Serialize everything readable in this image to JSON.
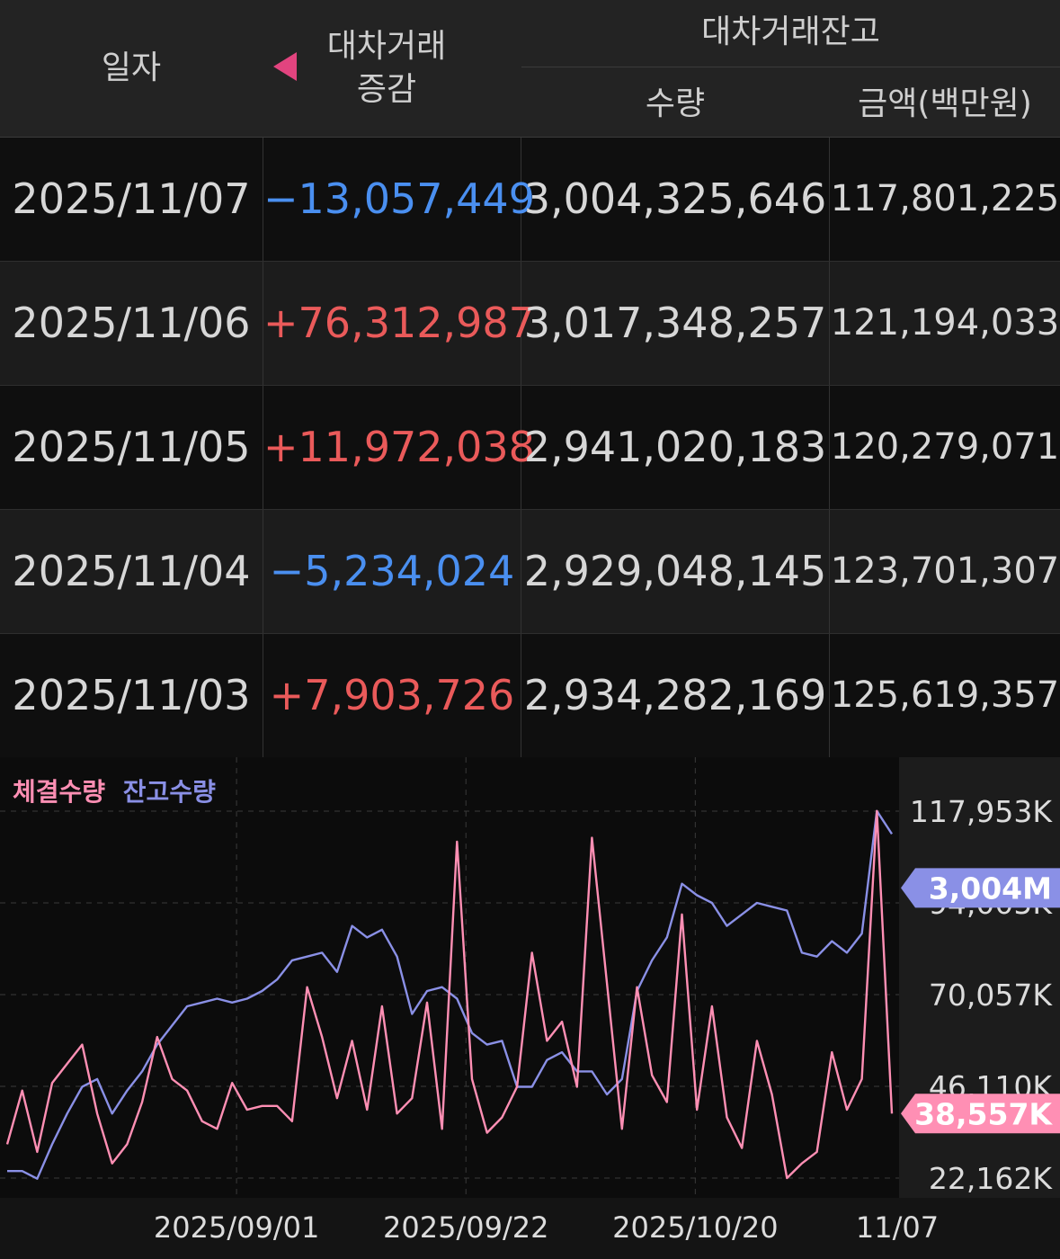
{
  "header": {
    "date_label": "일자",
    "change_label_line1": "대차거래",
    "change_label_line2": "증감",
    "balance_label": "대차거래잔고",
    "qty_label": "수량",
    "amount_label": "금액(백만원)"
  },
  "rows": [
    {
      "date": "2025/11/07",
      "change": "−13,057,449",
      "dir": "neg",
      "qty": "3,004,325,646",
      "amount": "117,801,225"
    },
    {
      "date": "2025/11/06",
      "change": "+76,312,987",
      "dir": "pos",
      "qty": "3,017,348,257",
      "amount": "121,194,033"
    },
    {
      "date": "2025/11/05",
      "change": "+11,972,038",
      "dir": "pos",
      "qty": "2,941,020,183",
      "amount": "120,279,071"
    },
    {
      "date": "2025/11/04",
      "change": "−5,234,024",
      "dir": "neg",
      "qty": "2,929,048,145",
      "amount": "123,701,307"
    },
    {
      "date": "2025/11/03",
      "change": "+7,903,726",
      "dir": "pos",
      "qty": "2,934,282,169",
      "amount": "125,619,357"
    }
  ],
  "colors": {
    "exec_series": "#ff8fb4",
    "balance_series": "#8a90e6",
    "neg": "#4a8ff0",
    "pos": "#ea5a5a"
  },
  "chart_data": {
    "type": "line",
    "legend": [
      "체결수량",
      "잔고수량"
    ],
    "y_ticks": [
      "117,953K",
      "94,005K",
      "70,057K",
      "46,110K",
      "22,162K"
    ],
    "y_tick_values": [
      117953,
      94005,
      70057,
      46110,
      22162
    ],
    "ylim": [
      22162,
      117953
    ],
    "x_tick_labels": [
      "2025/09/01",
      "2025/09/22",
      "2025/10/20",
      "11/07"
    ],
    "x_tick_index": [
      14,
      28,
      42,
      54
    ],
    "last_balance_label": "3,004M",
    "last_exec_label": "38,557K",
    "series": [
      {
        "name": "체결수량",
        "values": [
          31000,
          45000,
          29000,
          47000,
          52000,
          57000,
          39000,
          26000,
          31000,
          42000,
          59000,
          48000,
          45000,
          37000,
          35000,
          47000,
          40000,
          41000,
          41000,
          37000,
          72000,
          59000,
          43000,
          58000,
          40000,
          67000,
          39000,
          43000,
          68000,
          35000,
          110000,
          48000,
          34000,
          38000,
          46000,
          81000,
          58000,
          63000,
          46000,
          111000,
          73000,
          35000,
          72000,
          49000,
          42000,
          91000,
          40000,
          67000,
          38000,
          30000,
          58000,
          44000,
          22162,
          26000,
          29000,
          55000,
          40000,
          48000,
          118000,
          39000
        ]
      },
      {
        "name": "잔고수량",
        "values": [
          24000,
          24000,
          22000,
          31000,
          39000,
          46000,
          48000,
          39000,
          45000,
          50000,
          57000,
          62000,
          67000,
          68000,
          69000,
          68000,
          69000,
          71000,
          74000,
          79000,
          80000,
          81000,
          76000,
          88000,
          85000,
          87000,
          80000,
          65000,
          71000,
          72000,
          69000,
          60000,
          57000,
          58000,
          46000,
          46000,
          53000,
          55000,
          50000,
          50000,
          44000,
          48000,
          71000,
          79000,
          85000,
          99000,
          96000,
          94000,
          88000,
          91000,
          94000,
          93000,
          92000,
          81000,
          80000,
          84000,
          81000,
          86000,
          118000,
          112000
        ]
      }
    ]
  }
}
